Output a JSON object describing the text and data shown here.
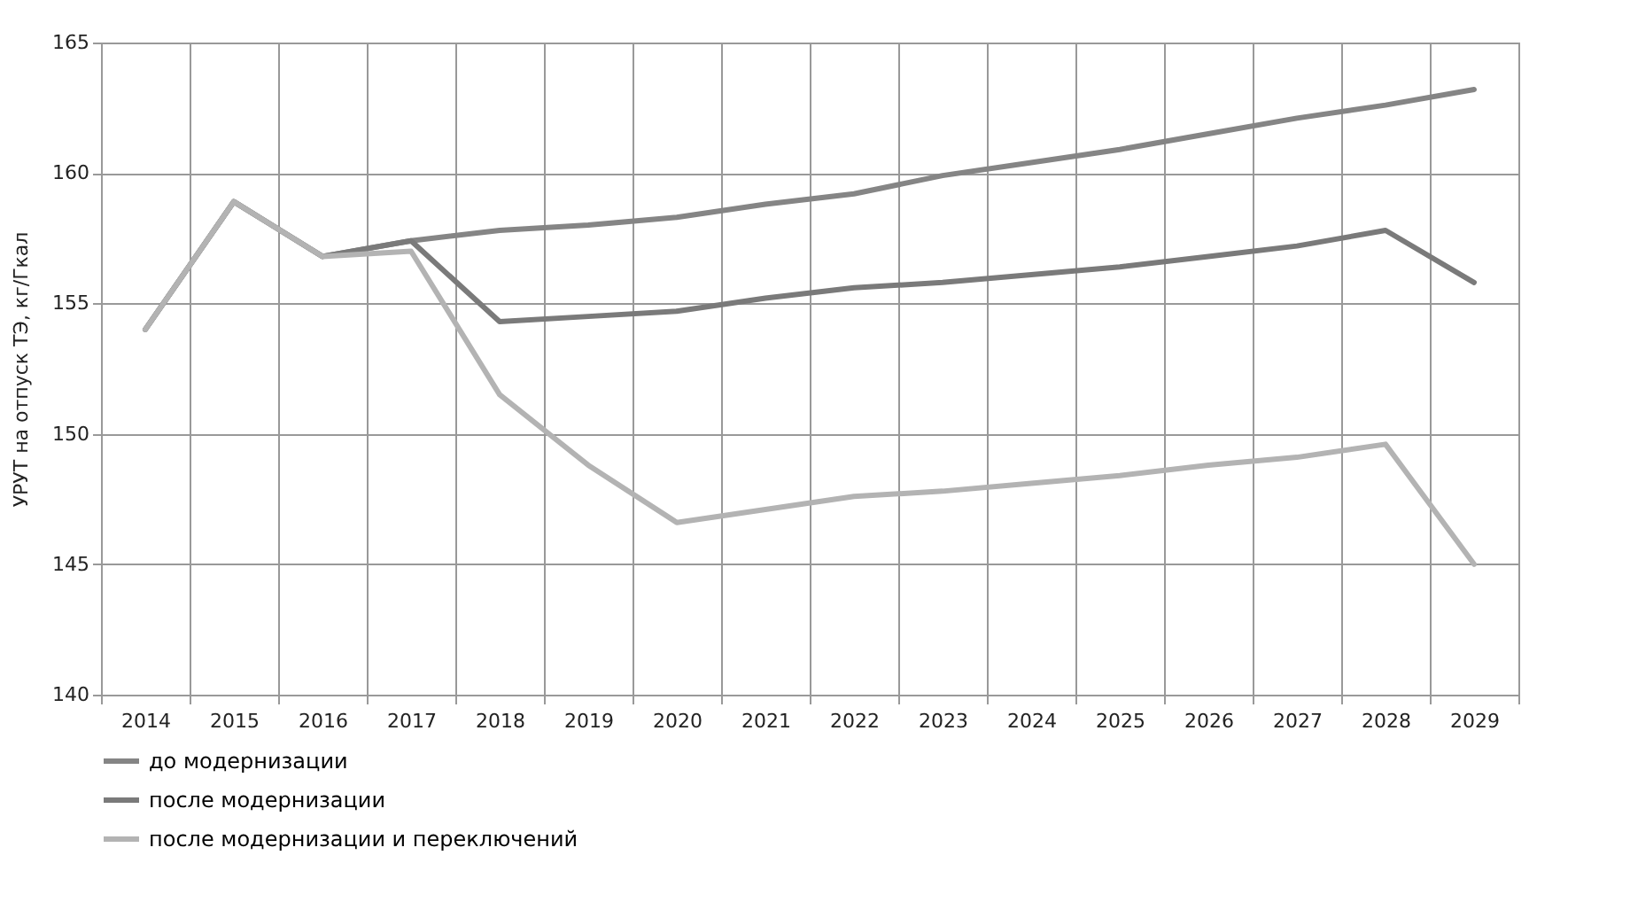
{
  "chart_data": {
    "type": "line",
    "ylabel": "УРУТ на отпуск ТЭ, кг/Гкал",
    "categories": [
      "2014",
      "2015",
      "2016",
      "2017",
      "2018",
      "2019",
      "2020",
      "2021",
      "2022",
      "2023",
      "2024",
      "2025",
      "2026",
      "2027",
      "2028",
      "2029"
    ],
    "series": [
      {
        "name": "до модернизации",
        "color": "#858585",
        "values": [
          154,
          158.9,
          156.8,
          157.4,
          157.8,
          158.0,
          158.3,
          158.8,
          159.2,
          159.9,
          160.4,
          160.9,
          161.5,
          162.1,
          162.6,
          163.2
        ]
      },
      {
        "name": "после модернизации",
        "color": "#7a7a7a",
        "values": [
          154,
          158.9,
          156.8,
          157.4,
          154.3,
          154.5,
          154.7,
          155.2,
          155.6,
          155.8,
          156.1,
          156.4,
          156.8,
          157.2,
          157.8,
          155.8
        ]
      },
      {
        "name": "после модернизации и переключений",
        "color": "#b3b3b3",
        "values": [
          154,
          158.9,
          156.8,
          157.0,
          151.5,
          148.8,
          146.6,
          147.1,
          147.6,
          147.8,
          148.1,
          148.4,
          148.8,
          149.1,
          149.6,
          145.0
        ]
      }
    ],
    "ylim": [
      140,
      165
    ],
    "yticks": [
      140,
      145,
      150,
      155,
      160,
      165
    ],
    "grid": true,
    "legend": "bottom",
    "marker": "none",
    "line_style": "solid"
  }
}
